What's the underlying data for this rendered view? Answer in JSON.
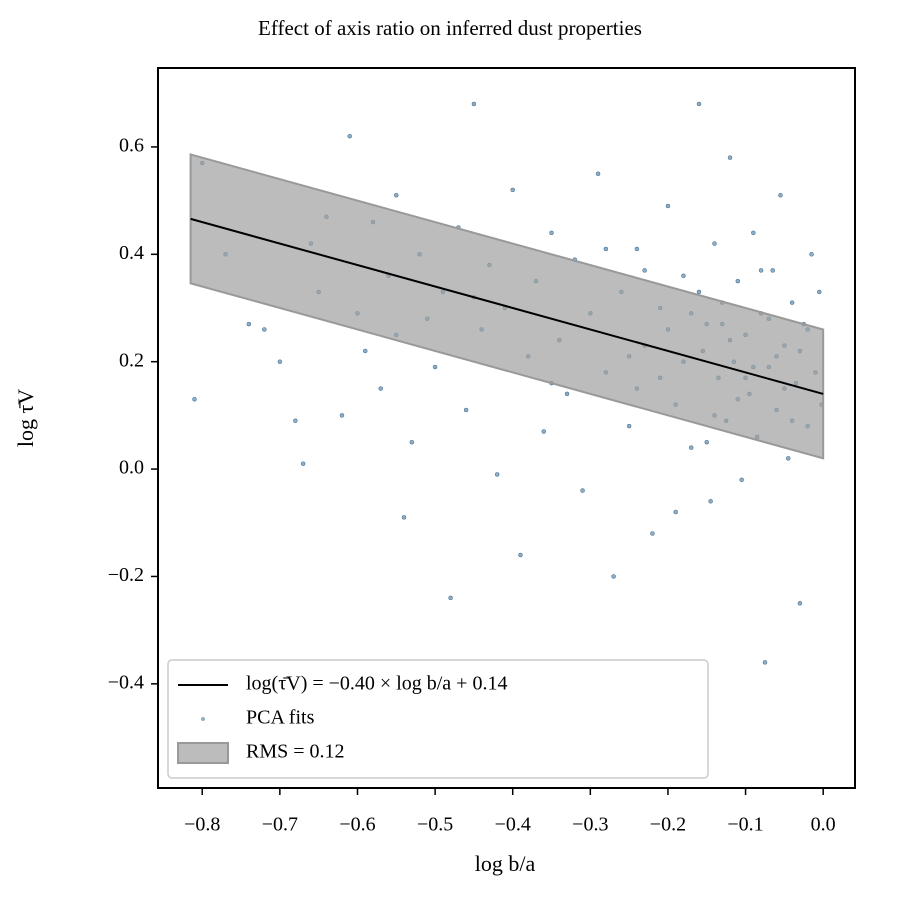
{
  "chart_data": {
    "type": "scatter",
    "title": "Effect of axis ratio on inferred dust properties",
    "x_label": "log b/a",
    "y_label": "log τ̄V",
    "xlim": [
      -0.857,
      0.041
    ],
    "ylim": [
      -0.594,
      0.747
    ],
    "xticks": [
      {
        "value": -0.8,
        "label": "−0.8"
      },
      {
        "value": -0.7,
        "label": "−0.7"
      },
      {
        "value": -0.6,
        "label": "−0.6"
      },
      {
        "value": -0.5,
        "label": "−0.5"
      },
      {
        "value": -0.4,
        "label": "−0.4"
      },
      {
        "value": -0.3,
        "label": "−0.3"
      },
      {
        "value": -0.2,
        "label": "−0.2"
      },
      {
        "value": -0.1,
        "label": "−0.1"
      },
      {
        "value": 0,
        "label": "0.0"
      }
    ],
    "yticks": [
      {
        "value": -0.4,
        "label": "−0.4"
      },
      {
        "value": -0.2,
        "label": "−0.2"
      },
      {
        "value": 0,
        "label": "0.0"
      },
      0.2,
      0.4,
      0.6
    ],
    "legend": "lower left",
    "series": [
      {
        "name": "log(τ̄V) = −0.40 × log b/a + 0.14",
        "type": "line",
        "color": "#000000",
        "x": [
          -0.815,
          0
        ],
        "values": [
          0.466,
          0.14
        ]
      },
      {
        "name": "PCA fits",
        "type": "scatter",
        "color": "#2f6b98",
        "x": [
          -0.81,
          -0.8,
          -0.77,
          -0.74,
          -0.72,
          -0.7,
          -0.68,
          -0.67,
          -0.66,
          -0.64,
          -0.62,
          -0.61,
          -0.6,
          -0.59,
          -0.58,
          -0.57,
          -0.56,
          -0.55,
          -0.54,
          -0.53,
          -0.52,
          -0.51,
          -0.5,
          -0.49,
          -0.48,
          -0.47,
          -0.46,
          -0.45,
          -0.44,
          -0.43,
          -0.42,
          -0.41,
          -0.4,
          -0.39,
          -0.38,
          -0.37,
          -0.36,
          -0.35,
          -0.34,
          -0.33,
          -0.32,
          -0.31,
          -0.3,
          -0.29,
          -0.28,
          -0.27,
          -0.26,
          -0.25,
          -0.24,
          -0.23,
          -0.22,
          -0.21,
          -0.2,
          -0.19,
          -0.18,
          -0.17,
          -0.16,
          -0.155,
          -0.15,
          -0.145,
          -0.14,
          -0.135,
          -0.13,
          -0.125,
          -0.12,
          -0.115,
          -0.11,
          -0.105,
          -0.1,
          -0.095,
          -0.09,
          -0.085,
          -0.08,
          -0.075,
          -0.07,
          -0.065,
          -0.06,
          -0.055,
          -0.05,
          -0.045,
          -0.04,
          -0.035,
          -0.03,
          -0.025,
          -0.02,
          -0.015,
          -0.01,
          -0.005,
          -0.002,
          -0.28,
          -0.24,
          -0.2,
          -0.18,
          -0.16,
          -0.14,
          -0.12,
          -0.1,
          -0.08,
          -0.06,
          -0.04,
          -0.02,
          -0.09,
          -0.07,
          -0.05,
          -0.03,
          -0.11,
          -0.13,
          -0.15,
          -0.17,
          -0.19,
          -0.21,
          -0.23,
          -0.25,
          -0.35,
          -0.45,
          -0.55,
          -0.65
        ],
        "values": [
          0.13,
          0.57,
          0.4,
          0.27,
          0.26,
          0.2,
          0.09,
          0.01,
          0.42,
          0.47,
          0.1,
          0.62,
          0.29,
          0.22,
          0.46,
          0.15,
          0.36,
          0.51,
          -0.09,
          0.05,
          0.4,
          0.28,
          0.19,
          0.33,
          -0.24,
          0.45,
          0.11,
          0.68,
          0.26,
          0.38,
          -0.01,
          0.3,
          0.52,
          -0.16,
          0.21,
          0.35,
          0.07,
          0.44,
          0.24,
          0.14,
          0.39,
          -0.04,
          0.29,
          0.55,
          0.18,
          -0.2,
          0.33,
          0.08,
          0.41,
          0.23,
          -0.12,
          0.3,
          0.49,
          0.12,
          0.36,
          0.04,
          0.68,
          0.22,
          0.27,
          -0.06,
          0.42,
          0.17,
          0.31,
          0.09,
          0.58,
          0.2,
          0.35,
          -0.02,
          0.25,
          0.14,
          0.44,
          0.06,
          0.29,
          -0.36,
          0.19,
          0.37,
          0.11,
          0.51,
          0.23,
          0.02,
          0.31,
          0.16,
          -0.25,
          0.27,
          0.08,
          0.4,
          0.18,
          0.33,
          0.12,
          0.41,
          0.15,
          0.26,
          0.2,
          0.33,
          0.1,
          0.24,
          0.17,
          0.37,
          0.21,
          0.09,
          0.26,
          0.19,
          0.28,
          0.15,
          0.22,
          0.13,
          0.27,
          0.05,
          0.29,
          -0.08,
          0.17,
          0.37,
          0.21,
          0.16,
          0.32,
          0.25,
          0.33
        ]
      },
      {
        "name": "RMS = 0.12",
        "type": "band",
        "color": "#a0a0a0",
        "x": [
          -0.815,
          0
        ],
        "lower": [
          0.346,
          0.02
        ],
        "upper": [
          0.586,
          0.26
        ]
      }
    ]
  }
}
